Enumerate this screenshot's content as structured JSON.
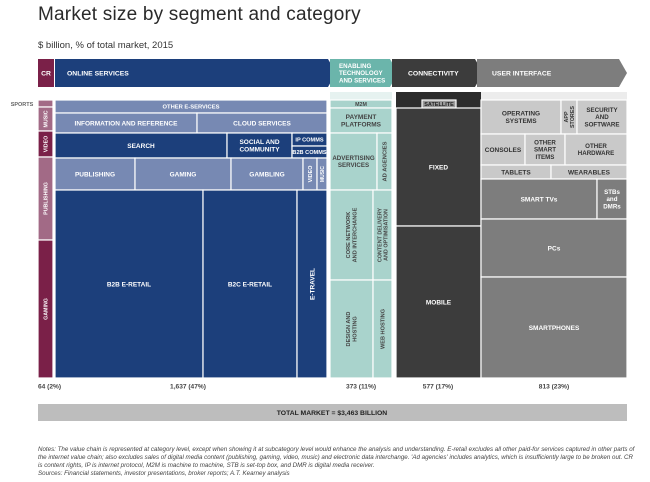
{
  "title": "Market size by segment and category",
  "subtitle": "$ billion, % of total market, 2015",
  "colors": {
    "cr_dark": "#7a2048",
    "cr_light": "#a26a86",
    "online_dark": "#1c3f7b",
    "online_light": "#7789b3",
    "enabling_light": "#6bb5ab",
    "enabling_lighter": "#a9d3cc",
    "enabling_bg": "#e6f2f0",
    "connectivity": "#3c3c3c",
    "ui_dark": "#7d7d7d",
    "ui_light": "#c9c9c9",
    "ui_bg": "#ececec",
    "total_bar": "#bdbdbd"
  },
  "chart_data": {
    "type": "treemap",
    "total_label": "TOTAL MARKET = $3,463 BILLION",
    "segments": [
      {
        "id": "cr",
        "label": "CR",
        "total_label": "64 (2%)",
        "value": 64,
        "share": 0.02,
        "categories": [
          "SPORTS",
          "MUSIC",
          "VIDEO",
          "PUBLISHING",
          "GAMING"
        ]
      },
      {
        "id": "online",
        "label": "ONLINE SERVICES",
        "total_label": "1,637 (47%)",
        "value": 1637,
        "share": 0.47,
        "categories": [
          "OTHER E-SERVICES",
          "INFORMATION AND REFERENCE",
          "CLOUD SERVICES",
          "SEARCH",
          "SOCIAL AND COMMUNITY",
          "IP COMMS",
          "B2B COMMS",
          "PUBLISHING",
          "GAMING",
          "GAMBLING",
          "VIDEO",
          "MUSIC",
          "B2B E-RETAIL",
          "B2C E-RETAIL",
          "E-TRAVEL"
        ]
      },
      {
        "id": "enabling",
        "label": [
          "ENABLING",
          "TECHNOLOGY",
          "AND SERVICES"
        ],
        "total_label": "373 (11%)",
        "value": 373,
        "share": 0.11,
        "categories": [
          "M2M",
          "PAYMENT PLATFORMS",
          "ADVERTISING SERVICES",
          "AD AGENCIES",
          "CORE NETWORK AND INTERCHANGE",
          "CONTENT DELIVERY AND OPTIMISATION",
          "DESIGN AND HOSTING",
          "WEB HOSTING"
        ]
      },
      {
        "id": "connectivity",
        "label": "CONNECTIVITY",
        "total_label": "577 (17%)",
        "value": 577,
        "share": 0.17,
        "categories": [
          "SATELLITE",
          "FIXED",
          "MOBILE"
        ]
      },
      {
        "id": "ui",
        "label": "USER INTERFACE",
        "total_label": "813 (23%)",
        "value": 813,
        "share": 0.23,
        "categories": [
          "OPERATING SYSTEMS",
          "APP STORES",
          "SECURITY AND SOFTWARE",
          "CONSOLES",
          "OTHER SMART ITEMS",
          "OTHER HARDWARE",
          "TABLETS",
          "WEARABLES",
          "SMART TVs",
          "STBs and DMRs",
          "PCs",
          "SMARTPHONES"
        ]
      }
    ]
  },
  "notes": [
    "Notes: The value chain is represented at category level, except when showing it at subcategory level would enhance the analysis and understanding. E-retail excludes all other paid-for services captured in other parts of the internet value chain; also excludes sales of digital media content (publishing, gaming, video, music) and electronic data interchange. 'Ad agencies' includes analytics, which is insufficiently large to be broken out. CR is content rights, IP is internet protocol, M2M is machine to machine, STB is set-top box, and DMR is digital media receiver.",
    "Sources: Financial statements, investor presentations, broker reports; A.T. Kearney analysis"
  ]
}
